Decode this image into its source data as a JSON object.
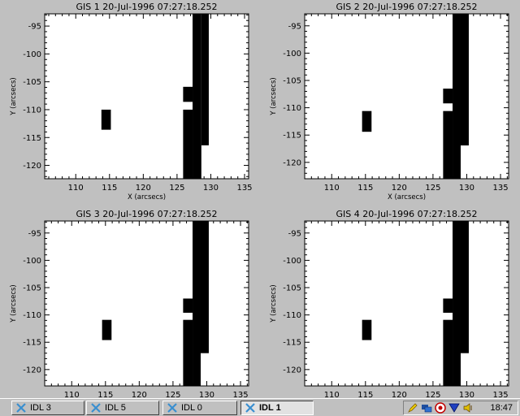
{
  "panels": [
    {
      "title": "GIS 1 20-Jul-1996 07:27:18.252",
      "xlabel": "X (arcsecs)",
      "ylabel": "Y (arcsecs)"
    },
    {
      "title": "GIS 2 20-Jul-1996 07:27:18.252",
      "xlabel": "X (arcsecs)",
      "ylabel": "Y (arcsecs)"
    },
    {
      "title": "GIS 3 20-Jul-1996 07:27:18.252",
      "xlabel": "",
      "ylabel": "Y (arcsecs)"
    },
    {
      "title": "GIS 4 20-Jul-1996 07:27:18.252",
      "xlabel": "",
      "ylabel": "Y (arcsecs)"
    }
  ],
  "chart_data": [
    {
      "type": "heatmap",
      "title": "GIS 1 20-Jul-1996 07:27:18.252",
      "xlabel": "X (arcsecs)",
      "ylabel": "Y (arcsecs)",
      "xlim": [
        105.4,
        135.6
      ],
      "ylim": [
        -122.4,
        -92.8
      ],
      "xticks": [
        110,
        115,
        120,
        125,
        130,
        135
      ],
      "yticks": [
        -95,
        -100,
        -105,
        -110,
        -115,
        -120
      ],
      "legend": "none",
      "grid": false,
      "pixels": [
        [
          113.8,
          -113.6,
          115.2,
          -110.0
        ],
        [
          125.9,
          -108.6,
          127.3,
          -105.9
        ],
        [
          125.9,
          -122.4,
          127.3,
          -110.0
        ],
        [
          127.3,
          -122.4,
          128.6,
          -92.8
        ],
        [
          128.6,
          -116.4,
          129.7,
          -92.8
        ]
      ]
    },
    {
      "type": "heatmap",
      "title": "GIS 2 20-Jul-1996 07:27:18.252",
      "xlabel": "X (arcsecs)",
      "ylabel": "Y (arcsecs)",
      "xlim": [
        106.0,
        136.2
      ],
      "ylim": [
        -123.0,
        -92.8
      ],
      "xticks": [
        110,
        115,
        120,
        125,
        130,
        135
      ],
      "yticks": [
        -95,
        -100,
        -105,
        -110,
        -115,
        -120
      ],
      "legend": "none",
      "grid": false,
      "pixels": [
        [
          114.5,
          -114.4,
          115.9,
          -110.6
        ],
        [
          126.5,
          -109.2,
          127.9,
          -106.5
        ],
        [
          126.5,
          -123.0,
          127.9,
          -110.6
        ],
        [
          127.9,
          -123.0,
          129.1,
          -92.8
        ],
        [
          129.1,
          -116.9,
          130.3,
          -92.8
        ]
      ]
    },
    {
      "type": "heatmap",
      "title": "GIS 3 20-Jul-1996 07:27:18.252",
      "xlabel": "",
      "ylabel": "Y (arcsecs)",
      "xlim": [
        106.0,
        136.2
      ],
      "ylim": [
        -123.0,
        -92.8
      ],
      "xticks": [
        110,
        115,
        120,
        125,
        130,
        135
      ],
      "yticks": [
        -95,
        -100,
        -105,
        -110,
        -115,
        -120
      ],
      "legend": "none",
      "grid": false,
      "pixels": [
        [
          114.5,
          -114.6,
          115.9,
          -110.9
        ],
        [
          126.5,
          -109.6,
          127.9,
          -107.0
        ],
        [
          126.5,
          -123.0,
          127.9,
          -110.9
        ],
        [
          127.9,
          -123.0,
          129.1,
          -92.8
        ],
        [
          129.1,
          -117.0,
          130.3,
          -92.8
        ]
      ]
    },
    {
      "type": "heatmap",
      "title": "GIS 4 20-Jul-1996 07:27:18.252",
      "xlabel": "",
      "ylabel": "Y (arcsecs)",
      "xlim": [
        106.0,
        136.2
      ],
      "ylim": [
        -123.0,
        -92.8
      ],
      "xticks": [
        110,
        115,
        120,
        125,
        130,
        135
      ],
      "yticks": [
        -95,
        -100,
        -105,
        -110,
        -115,
        -120
      ],
      "legend": "none",
      "grid": false,
      "pixels": [
        [
          114.5,
          -114.6,
          115.9,
          -110.9
        ],
        [
          126.5,
          -109.6,
          127.9,
          -107.0
        ],
        [
          126.5,
          -123.0,
          127.9,
          -110.9
        ],
        [
          127.9,
          -123.0,
          129.1,
          -92.8
        ],
        [
          129.1,
          -117.0,
          130.3,
          -92.8
        ]
      ]
    }
  ],
  "taskbar": {
    "buttons": [
      {
        "label": "IDL 3",
        "active": false,
        "icon": "idl-icon"
      },
      {
        "label": "IDL 5",
        "active": false,
        "icon": "idl-icon"
      },
      {
        "label": "IDL 0",
        "active": false,
        "icon": "idl-icon"
      },
      {
        "label": "IDL 1",
        "active": true,
        "icon": "idl-icon"
      }
    ],
    "tray_icons": [
      "pen-icon",
      "network-icon",
      "target-icon",
      "download-icon",
      "volume-icon"
    ],
    "clock": "18:47"
  }
}
